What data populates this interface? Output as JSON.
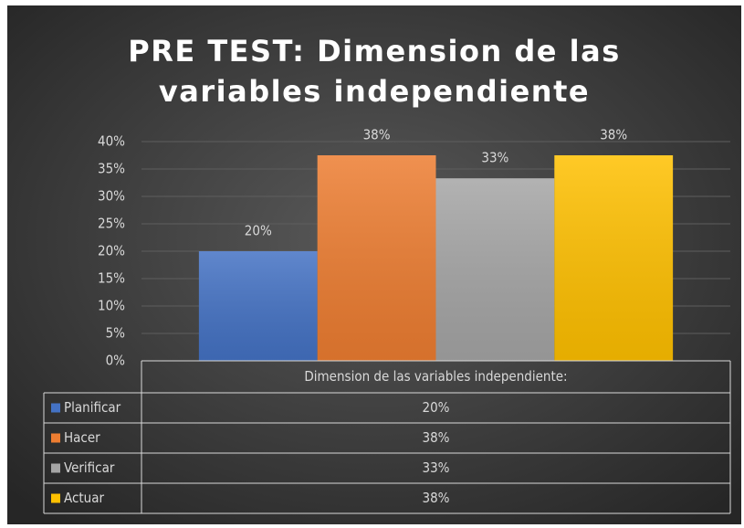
{
  "chart_data": {
    "type": "bar",
    "title": "PRE TEST: Dimension de las variables independiente",
    "categories": [
      "Dimension de las variables independiente:"
    ],
    "series": [
      {
        "name": "Planificar",
        "color": "#4472c4",
        "values": [
          20
        ],
        "value_labels": [
          "20%"
        ]
      },
      {
        "name": "Hacer",
        "color": "#ed7d31",
        "values": [
          37.5
        ],
        "value_labels": [
          "38%"
        ]
      },
      {
        "name": "Verificar",
        "color": "#a5a5a5",
        "values": [
          33.3
        ],
        "value_labels": [
          "33%"
        ]
      },
      {
        "name": "Actuar",
        "color": "#ffc000",
        "values": [
          37.5
        ],
        "value_labels": [
          "38%"
        ]
      }
    ],
    "ylim": [
      0,
      40
    ],
    "yticks": [
      {
        "value": 0,
        "label": "0%"
      },
      {
        "value": 5,
        "label": "5%"
      },
      {
        "value": 10,
        "label": "10%"
      },
      {
        "value": 15,
        "label": "15%"
      },
      {
        "value": 20,
        "label": "20%"
      },
      {
        "value": 25,
        "label": "25%"
      },
      {
        "value": 30,
        "label": "30%"
      },
      {
        "value": 35,
        "label": "35%"
      },
      {
        "value": 40,
        "label": "40%"
      }
    ],
    "grid": true,
    "data_table": true
  }
}
